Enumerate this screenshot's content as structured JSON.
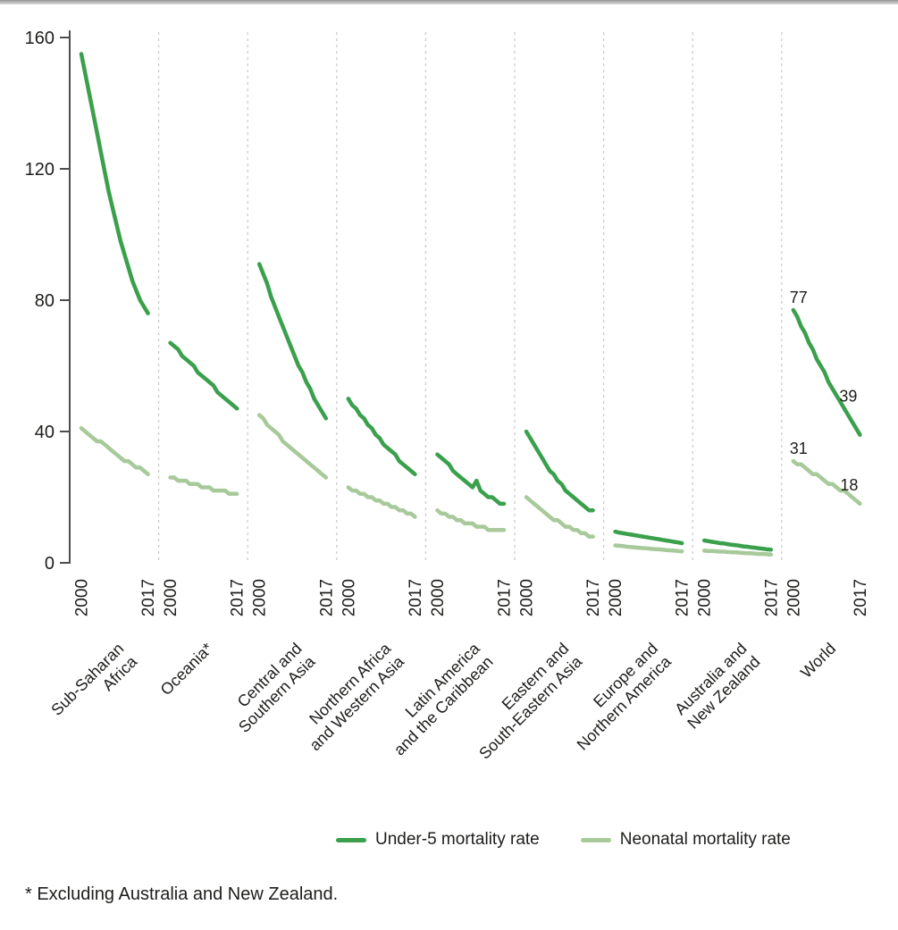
{
  "page": {
    "footnote": "* Excluding Australia and New Zealand."
  },
  "legend": [
    {
      "series": "under5",
      "label": "Under-5 mortality rate"
    },
    {
      "series": "neonatal",
      "label": "Neonatal mortality rate"
    }
  ],
  "chart_data": {
    "type": "line",
    "title": "",
    "x": [
      2000,
      2001,
      2002,
      2003,
      2004,
      2005,
      2006,
      2007,
      2008,
      2009,
      2010,
      2011,
      2012,
      2013,
      2014,
      2015,
      2016,
      2017
    ],
    "x_shown_ticks": [
      "2000",
      "2017"
    ],
    "ylim": [
      0,
      160
    ],
    "yticks": [
      0,
      40,
      80,
      120,
      160
    ],
    "grid": false,
    "legend_position": "bottom",
    "colors": {
      "under5": "#3aa04c",
      "neonatal": "#a8ca9b",
      "axis": "#4d4d4d",
      "separator": "#cccccc",
      "text": "#1d1d1b"
    },
    "series_labels": {
      "under5": "Under-5 mortality rate",
      "neonatal": "Neonatal mortality rate"
    },
    "panels": [
      {
        "region_lines": [
          "Sub-Saharan",
          "Africa"
        ],
        "under5": [
          155,
          149,
          143,
          137,
          131,
          125,
          119,
          113,
          108,
          103,
          98,
          94,
          90,
          86,
          83,
          80,
          78,
          76
        ],
        "neonatal": [
          41,
          40,
          39,
          38,
          37,
          37,
          36,
          35,
          34,
          33,
          32,
          31,
          31,
          30,
          29,
          29,
          28,
          27
        ]
      },
      {
        "region_lines": [
          "Oceania*"
        ],
        "under5": [
          67,
          66,
          65,
          63,
          62,
          61,
          60,
          58,
          57,
          56,
          55,
          54,
          52,
          51,
          50,
          49,
          48,
          47
        ],
        "neonatal": [
          26,
          26,
          25,
          25,
          25,
          24,
          24,
          24,
          23,
          23,
          23,
          22,
          22,
          22,
          22,
          21,
          21,
          21
        ]
      },
      {
        "region_lines": [
          "Central and",
          "Southern Asia"
        ],
        "under5": [
          91,
          88,
          85,
          81,
          78,
          75,
          72,
          69,
          66,
          63,
          60,
          58,
          55,
          53,
          50,
          48,
          46,
          44
        ],
        "neonatal": [
          45,
          44,
          42,
          41,
          40,
          39,
          37,
          36,
          35,
          34,
          33,
          32,
          31,
          30,
          29,
          28,
          27,
          26
        ]
      },
      {
        "region_lines": [
          "Northern Africa",
          "and Western Asia"
        ],
        "under5": [
          50,
          48,
          47,
          45,
          44,
          42,
          41,
          39,
          38,
          36,
          35,
          34,
          33,
          31,
          30,
          29,
          28,
          27
        ],
        "neonatal": [
          23,
          22,
          22,
          21,
          21,
          20,
          20,
          19,
          19,
          18,
          18,
          17,
          17,
          16,
          16,
          15,
          15,
          14
        ]
      },
      {
        "region_lines": [
          "Latin America",
          "and the Caribbean"
        ],
        "under5": [
          33,
          32,
          31,
          30,
          28,
          27,
          26,
          25,
          24,
          23,
          25,
          22,
          21,
          20,
          20,
          19,
          18,
          18
        ],
        "neonatal": [
          16,
          15,
          15,
          14,
          14,
          13,
          13,
          12,
          12,
          12,
          11,
          11,
          11,
          10,
          10,
          10,
          10,
          10
        ]
      },
      {
        "region_lines": [
          "Eastern and",
          "South-Eastern Asia"
        ],
        "under5": [
          40,
          38,
          36,
          34,
          32,
          30,
          28,
          27,
          25,
          24,
          22,
          21,
          20,
          19,
          18,
          17,
          16,
          16
        ],
        "neonatal": [
          20,
          19,
          18,
          17,
          16,
          15,
          14,
          13,
          13,
          12,
          11,
          11,
          10,
          10,
          9,
          9,
          8,
          8
        ]
      },
      {
        "region_lines": [
          "Europe and",
          "Northern America"
        ],
        "under5": [
          9.5,
          9.2,
          9.0,
          8.8,
          8.6,
          8.4,
          8.2,
          8.0,
          7.8,
          7.6,
          7.4,
          7.2,
          7.0,
          6.8,
          6.6,
          6.4,
          6.2,
          6.0
        ],
        "neonatal": [
          5.3,
          5.2,
          5.1,
          4.9,
          4.8,
          4.7,
          4.6,
          4.5,
          4.4,
          4.3,
          4.2,
          4.1,
          4.0,
          3.9,
          3.8,
          3.7,
          3.6,
          3.5
        ]
      },
      {
        "region_lines": [
          "Australia and",
          "New Zealand"
        ],
        "under5": [
          6.8,
          6.6,
          6.4,
          6.2,
          6.0,
          5.9,
          5.7,
          5.5,
          5.4,
          5.2,
          5.0,
          4.9,
          4.7,
          4.6,
          4.4,
          4.3,
          4.1,
          4.0
        ],
        "neonatal": [
          3.7,
          3.6,
          3.6,
          3.5,
          3.4,
          3.4,
          3.3,
          3.2,
          3.2,
          3.1,
          3.0,
          2.9,
          2.9,
          2.8,
          2.7,
          2.7,
          2.6,
          2.5
        ]
      },
      {
        "region_lines": [
          "World"
        ],
        "under5": [
          77,
          75,
          72,
          70,
          67,
          65,
          62,
          60,
          58,
          55,
          53,
          51,
          49,
          47,
          45,
          43,
          41,
          39
        ],
        "neonatal": [
          31,
          30,
          30,
          29,
          28,
          27,
          27,
          26,
          25,
          24,
          24,
          23,
          22,
          22,
          21,
          20,
          19,
          18
        ]
      }
    ],
    "annotations": [
      {
        "panel": 8,
        "series": "under5",
        "position": "start",
        "text": "77"
      },
      {
        "panel": 8,
        "series": "under5",
        "position": "end",
        "text": "39"
      },
      {
        "panel": 8,
        "series": "neonatal",
        "position": "start",
        "text": "31"
      },
      {
        "panel": 8,
        "series": "neonatal",
        "position": "end",
        "text": "18"
      }
    ]
  }
}
